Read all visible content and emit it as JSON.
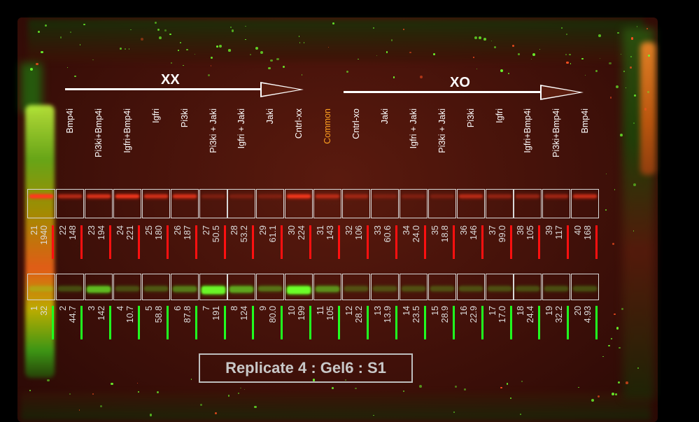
{
  "groups": {
    "left": "XX",
    "right": "XO"
  },
  "lanes": [
    {
      "label": "Bmp4i",
      "color": "#ffffff"
    },
    {
      "label": "Pi3ki+Bmp4i",
      "color": "#ffffff"
    },
    {
      "label": "Igfri+Bmp4i",
      "color": "#ffffff"
    },
    {
      "label": "Igfri",
      "color": "#ffffff"
    },
    {
      "label": "Pi3ki",
      "color": "#ffffff"
    },
    {
      "label": "Pi3ki + Jaki",
      "color": "#ffffff"
    },
    {
      "label": "Igfri + Jaki",
      "color": "#ffffff"
    },
    {
      "label": "Jaki",
      "color": "#ffffff"
    },
    {
      "label": "Cntrl-xx",
      "color": "#ffffff"
    },
    {
      "label": "Common",
      "color": "#ffa020"
    },
    {
      "label": "Cntrl-xo",
      "color": "#ffffff"
    },
    {
      "label": "Jaki",
      "color": "#ffffff"
    },
    {
      "label": "Igfri + Jaki",
      "color": "#ffffff"
    },
    {
      "label": "Pi3ki + Jaki",
      "color": "#ffffff"
    },
    {
      "label": "Pi3ki",
      "color": "#ffffff"
    },
    {
      "label": "Igfri",
      "color": "#ffffff"
    },
    {
      "label": "Igfri+Bmp4i",
      "color": "#ffffff"
    },
    {
      "label": "Pi3ki+Bmp4i",
      "color": "#ffffff"
    },
    {
      "label": "Bmp4i",
      "color": "#ffffff"
    }
  ],
  "red_row": [
    {
      "idx": "21",
      "val": "1940"
    },
    {
      "idx": "22",
      "val": "148"
    },
    {
      "idx": "23",
      "val": "194"
    },
    {
      "idx": "24",
      "val": "221"
    },
    {
      "idx": "25",
      "val": "180"
    },
    {
      "idx": "26",
      "val": "187"
    },
    {
      "idx": "27",
      "val": "50.5"
    },
    {
      "idx": "28",
      "val": "53.2"
    },
    {
      "idx": "29",
      "val": "61.1"
    },
    {
      "idx": "30",
      "val": "224"
    },
    {
      "idx": "31",
      "val": "143"
    },
    {
      "idx": "32",
      "val": "106"
    },
    {
      "idx": "33",
      "val": "60.6"
    },
    {
      "idx": "34",
      "val": "24.0"
    },
    {
      "idx": "35",
      "val": "18.8"
    },
    {
      "idx": "36",
      "val": "146"
    },
    {
      "idx": "37",
      "val": "99.0"
    },
    {
      "idx": "38",
      "val": "105"
    },
    {
      "idx": "39",
      "val": "117"
    },
    {
      "idx": "40",
      "val": "168"
    }
  ],
  "green_row": [
    {
      "idx": "1",
      "val": "32"
    },
    {
      "idx": "2",
      "val": "44.7"
    },
    {
      "idx": "3",
      "val": "142"
    },
    {
      "idx": "4",
      "val": "10.7"
    },
    {
      "idx": "5",
      "val": "58.8"
    },
    {
      "idx": "6",
      "val": "87.8"
    },
    {
      "idx": "7",
      "val": "191"
    },
    {
      "idx": "8",
      "val": "124"
    },
    {
      "idx": "9",
      "val": "80.0"
    },
    {
      "idx": "10",
      "val": "199"
    },
    {
      "idx": "11",
      "val": "105"
    },
    {
      "idx": "12",
      "val": "28.2"
    },
    {
      "idx": "13",
      "val": "13.9"
    },
    {
      "idx": "14",
      "val": "23.5"
    },
    {
      "idx": "15",
      "val": "28.9"
    },
    {
      "idx": "16",
      "val": "22.9"
    },
    {
      "idx": "17",
      "val": "17.0"
    },
    {
      "idx": "18",
      "val": "24.4"
    },
    {
      "idx": "19",
      "val": "32.2"
    },
    {
      "idx": "20",
      "val": "4.93"
    }
  ],
  "colors": {
    "red_band": "#ff3a1e",
    "green_band": "#6cff2a",
    "red_marker": "#ff1010",
    "green_marker": "#20ff20"
  },
  "caption": "Replicate 4 : Gel6 : S1"
}
